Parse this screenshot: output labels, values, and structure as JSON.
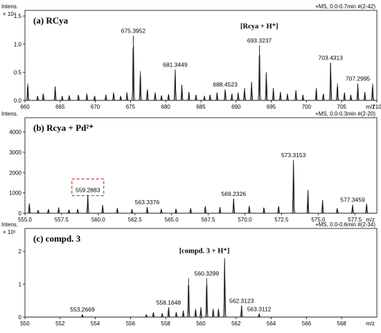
{
  "chart_data": [
    {
      "type": "line",
      "title": "(a) RCya",
      "ylabel": "Intens.",
      "yexp": "× 10⁴",
      "info": "+MS, 0.0-0.7min #(2-42)",
      "xunit": "m/z",
      "xlim": [
        660,
        710
      ],
      "ylim": [
        0,
        1.6
      ],
      "xticks": [
        660,
        665,
        670,
        675,
        680,
        685,
        690,
        695,
        700,
        705,
        710
      ],
      "yticks": [
        0,
        0.5,
        1.0,
        1.5
      ],
      "yticklabels": [
        "0.0",
        "0.5",
        "1.0",
        "1.5"
      ],
      "peaks": [
        {
          "x": 660.4,
          "y": 0.3
        },
        {
          "x": 661.8,
          "y": 0.08
        },
        {
          "x": 662.6,
          "y": 0.12
        },
        {
          "x": 664.3,
          "y": 0.25
        },
        {
          "x": 665.3,
          "y": 0.08
        },
        {
          "x": 666.3,
          "y": 0.09
        },
        {
          "x": 667.6,
          "y": 0.1
        },
        {
          "x": 668.8,
          "y": 0.12
        },
        {
          "x": 669.9,
          "y": 0.08
        },
        {
          "x": 671.5,
          "y": 0.1
        },
        {
          "x": 672.6,
          "y": 0.14
        },
        {
          "x": 673.6,
          "y": 0.08
        },
        {
          "x": 674.5,
          "y": 0.14
        },
        {
          "x": 675.3952,
          "y": 1.15
        },
        {
          "x": 676.4,
          "y": 0.52
        },
        {
          "x": 677.4,
          "y": 0.2
        },
        {
          "x": 678.5,
          "y": 0.14
        },
        {
          "x": 679.4,
          "y": 0.09
        },
        {
          "x": 680.4,
          "y": 0.11
        },
        {
          "x": 681.3449,
          "y": 0.55
        },
        {
          "x": 682.3,
          "y": 0.28
        },
        {
          "x": 683.3,
          "y": 0.15
        },
        {
          "x": 684.3,
          "y": 0.1
        },
        {
          "x": 685.5,
          "y": 0.08
        },
        {
          "x": 686.3,
          "y": 0.1
        },
        {
          "x": 687.3,
          "y": 0.14
        },
        {
          "x": 688.4523,
          "y": 0.2
        },
        {
          "x": 689.4,
          "y": 0.12
        },
        {
          "x": 690.3,
          "y": 0.14
        },
        {
          "x": 691.2,
          "y": 0.22
        },
        {
          "x": 692.2,
          "y": 0.33
        },
        {
          "x": 693.3237,
          "y": 0.98
        },
        {
          "x": 694.3,
          "y": 0.5
        },
        {
          "x": 695.3,
          "y": 0.22
        },
        {
          "x": 696.3,
          "y": 0.15
        },
        {
          "x": 697.3,
          "y": 0.12
        },
        {
          "x": 698.5,
          "y": 0.18
        },
        {
          "x": 699.5,
          "y": 0.1
        },
        {
          "x": 701.4,
          "y": 0.22
        },
        {
          "x": 702.4,
          "y": 0.12
        },
        {
          "x": 703.4313,
          "y": 0.67
        },
        {
          "x": 704.4,
          "y": 0.3
        },
        {
          "x": 705.4,
          "y": 0.14
        },
        {
          "x": 706.3,
          "y": 0.1
        },
        {
          "x": 707.2995,
          "y": 0.3
        },
        {
          "x": 708.3,
          "y": 0.15
        },
        {
          "x": 709.4,
          "y": 0.3
        }
      ],
      "labels": [
        {
          "x": 675.3952,
          "y": 1.15,
          "text": "675.3952"
        },
        {
          "x": 681.3449,
          "y": 0.55,
          "text": "681.3449"
        },
        {
          "x": 688.4523,
          "y": 0.2,
          "text": "688.4523"
        },
        {
          "x": 693.3237,
          "y": 0.98,
          "text": "693.3237"
        },
        {
          "x": 703.4313,
          "y": 0.67,
          "text": "703.4313"
        },
        {
          "x": 707.2995,
          "y": 0.3,
          "text": "707.2995"
        }
      ],
      "annotation": {
        "text": "[Rcya + H⁺]",
        "x": 693.3,
        "y": 1.28
      }
    },
    {
      "type": "line",
      "title": "(b) Rcya + Pd²⁺",
      "ylabel": "Intens.",
      "yexp": "",
      "info": "+MS, 0.0-0.3min #(2-20)",
      "xunit": "m/z",
      "xlim": [
        555,
        579
      ],
      "ylim": [
        0,
        4700
      ],
      "xticks": [
        555,
        557.5,
        560,
        562.5,
        565,
        567.5,
        570,
        572.5,
        575,
        577.5
      ],
      "xticklabels": [
        "555.0",
        "557.5",
        "560.0",
        "562.5",
        "565.0",
        "567.5",
        "570.0",
        "572.5",
        "575.0",
        "577.5"
      ],
      "yticks": [
        0,
        1000,
        2000,
        3000,
        4000
      ],
      "yticklabels": [
        "0",
        "1000",
        "2000",
        "3000",
        "4000"
      ],
      "peaks": [
        {
          "x": 555.3,
          "y": 480
        },
        {
          "x": 555.9,
          "y": 150
        },
        {
          "x": 556.6,
          "y": 200
        },
        {
          "x": 557.3,
          "y": 280
        },
        {
          "x": 558.0,
          "y": 180
        },
        {
          "x": 558.6,
          "y": 200
        },
        {
          "x": 559.2883,
          "y": 900
        },
        {
          "x": 560.3,
          "y": 400
        },
        {
          "x": 561.3,
          "y": 260
        },
        {
          "x": 562.3,
          "y": 200
        },
        {
          "x": 563.3376,
          "y": 300
        },
        {
          "x": 564.3,
          "y": 200
        },
        {
          "x": 565.3,
          "y": 220
        },
        {
          "x": 566.3,
          "y": 250
        },
        {
          "x": 567.3,
          "y": 350
        },
        {
          "x": 568.3,
          "y": 300
        },
        {
          "x": 569.2326,
          "y": 720
        },
        {
          "x": 570.3,
          "y": 360
        },
        {
          "x": 571.3,
          "y": 280
        },
        {
          "x": 572.3,
          "y": 350
        },
        {
          "x": 573.3153,
          "y": 2620
        },
        {
          "x": 574.3,
          "y": 1140
        },
        {
          "x": 575.3,
          "y": 650
        },
        {
          "x": 576.3,
          "y": 250
        },
        {
          "x": 577.3459,
          "y": 420
        },
        {
          "x": 578.3,
          "y": 480
        }
      ],
      "labels": [
        {
          "x": 559.2883,
          "y": 900,
          "text": "559.2883"
        },
        {
          "x": 563.3376,
          "y": 300,
          "text": "563.3376"
        },
        {
          "x": 569.2326,
          "y": 720,
          "text": "569.2326"
        },
        {
          "x": 573.3153,
          "y": 2620,
          "text": "573.3153"
        },
        {
          "x": 577.3459,
          "y": 420,
          "text": "577.3459"
        }
      ],
      "highlight": "559.2883"
    },
    {
      "type": "line",
      "title": "(c) compd. 3",
      "ylabel": "Intens.",
      "yexp": "× 10⁵",
      "info": "+MS, 0.0-0.6min #(2-34)",
      "xunit": "m/z",
      "xlim": [
        550,
        570
      ],
      "ylim": [
        0,
        2.7
      ],
      "xticks": [
        550,
        552,
        554,
        556,
        558,
        560,
        562,
        564,
        566,
        568
      ],
      "yticks": [
        0,
        1,
        2
      ],
      "yticklabels": [
        "0",
        "1",
        "2"
      ],
      "peaks": [
        {
          "x": 553.2669,
          "y": 0.08
        },
        {
          "x": 556.9,
          "y": 0.08
        },
        {
          "x": 557.3,
          "y": 0.15
        },
        {
          "x": 557.8,
          "y": 0.12
        },
        {
          "x": 558.1648,
          "y": 0.3
        },
        {
          "x": 558.6,
          "y": 0.15
        },
        {
          "x": 559.0,
          "y": 0.2
        },
        {
          "x": 559.3,
          "y": 1.18
        },
        {
          "x": 559.7,
          "y": 0.25
        },
        {
          "x": 560.0,
          "y": 0.3
        },
        {
          "x": 560.3299,
          "y": 1.18
        },
        {
          "x": 560.7,
          "y": 0.25
        },
        {
          "x": 561.0,
          "y": 0.25
        },
        {
          "x": 561.35,
          "y": 1.8
        },
        {
          "x": 562.3123,
          "y": 0.35
        },
        {
          "x": 563.3112,
          "y": 0.1
        }
      ],
      "labels": [
        {
          "x": 553.2669,
          "y": 0.08,
          "text": "553.2669"
        },
        {
          "x": 558.1648,
          "y": 0.3,
          "text": "558.1648"
        },
        {
          "x": 560.3299,
          "y": 1.18,
          "text": "560.3299"
        },
        {
          "x": 562.3123,
          "y": 0.35,
          "text": "562.3123"
        },
        {
          "x": 563.3112,
          "y": 0.1,
          "text": "563.3112"
        }
      ],
      "annotation": {
        "text": "[compd. 3 + H⁺]",
        "x": 560.2,
        "y": 1.95
      }
    }
  ]
}
